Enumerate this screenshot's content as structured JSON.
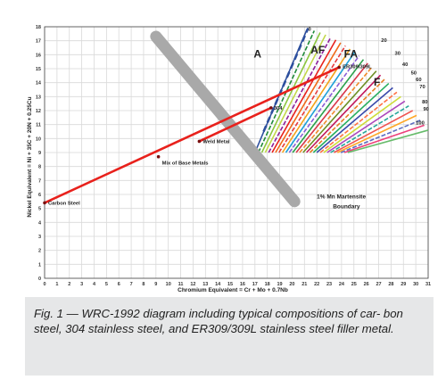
{
  "caption": "Fig. 1 — WRC-1992 diagram including typical compositions of car- bon steel, 304 stainless steel, and ER309/309L stainless steel filler metal.",
  "chart_data": {
    "type": "line",
    "xlabel": "Chromium Equivalent = Cr + Mo + 0.7Nb",
    "ylabel": "Nickel Equivalent = Ni + 35C + 20N + 0.25Cu",
    "xlim": [
      0,
      31
    ],
    "ylim": [
      0,
      18
    ],
    "xticks": [
      0,
      1,
      2,
      3,
      4,
      5,
      6,
      7,
      8,
      9,
      10,
      11,
      12,
      13,
      14,
      15,
      16,
      17,
      18,
      19,
      20,
      21,
      22,
      23,
      24,
      25,
      26,
      27,
      28,
      29,
      30,
      31
    ],
    "yticks": [
      0,
      1,
      2,
      3,
      4,
      5,
      6,
      7,
      8,
      9,
      10,
      11,
      12,
      13,
      14,
      15,
      16,
      17,
      18
    ],
    "grid": true,
    "colors": {
      "mix_line": "#e8211c",
      "martensite_band": "#a9a9a9",
      "af_boundary": "#2d4f9e",
      "grid": "#d9d9d9"
    },
    "mix_lines": [
      {
        "x": [
          0,
          23.8
        ],
        "y": [
          5.4,
          15.1
        ]
      },
      {
        "x": [
          12.5,
          18.3
        ],
        "y": [
          9.8,
          12.2
        ]
      }
    ],
    "points": [
      {
        "label": "Carbon Steel",
        "x": 0,
        "y": 5.4
      },
      {
        "label": "Mix of Base Metals",
        "x": 9.2,
        "y": 8.7
      },
      {
        "label": "Weld Metal",
        "x": 12.5,
        "y": 9.8
      },
      {
        "label": "304",
        "x": 18.3,
        "y": 12.2
      },
      {
        "label": "ER309/309L",
        "x": 23.8,
        "y": 15.1
      }
    ],
    "martensite_boundary": {
      "label": "1% Mn Martensite Boundary",
      "x": [
        9,
        20.2
      ],
      "y": [
        17.3,
        5.5
      ]
    },
    "region_labels": [
      {
        "label": "A",
        "x": 16.9,
        "y": 15.8
      },
      {
        "label": "AF",
        "x": 21.5,
        "y": 16.1
      },
      {
        "label": "FA",
        "x": 24.2,
        "y": 15.8
      },
      {
        "label": "F",
        "x": 26.6,
        "y": 13.8
      }
    ],
    "ferrite_number_labels": [
      {
        "label": "0",
        "x": 21.3,
        "y": 17.7
      },
      {
        "label": "20",
        "x": 27.2,
        "y": 16.9
      },
      {
        "label": "30",
        "x": 28.3,
        "y": 16.0
      },
      {
        "label": "40",
        "x": 28.9,
        "y": 15.2
      },
      {
        "label": "50",
        "x": 29.6,
        "y": 14.6
      },
      {
        "label": "60",
        "x": 30.0,
        "y": 14.1
      },
      {
        "label": "70",
        "x": 30.3,
        "y": 13.6
      },
      {
        "label": "80",
        "x": 30.5,
        "y": 12.5
      },
      {
        "label": "90",
        "x": 30.6,
        "y": 12.0
      },
      {
        "label": "100",
        "x": 30.0,
        "y": 11.0
      }
    ]
  }
}
